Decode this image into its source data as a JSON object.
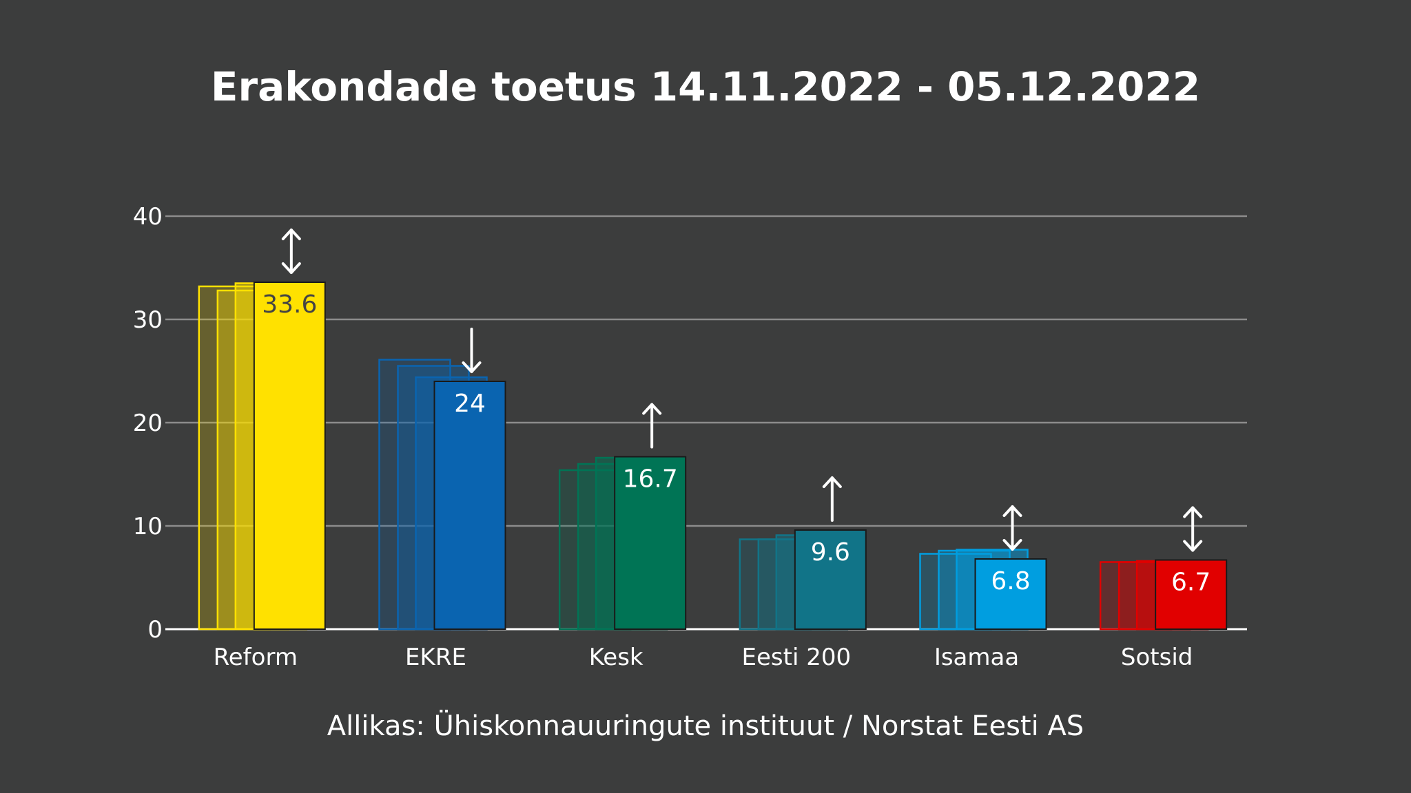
{
  "chart_data": {
    "type": "bar",
    "title": "Erakondade toetus 14.11.2022 - 05.12.2022",
    "source": "Allikas: Ühiskonnauuringute instituut / Norstat Eesti AS",
    "ylim": [
      0,
      40
    ],
    "yticks": [
      0,
      10,
      20,
      30,
      40
    ],
    "grid": true,
    "categories": [
      "Reform",
      "EKRE",
      "Kesk",
      "Eesti 200",
      "Isamaa",
      "Sotsid"
    ],
    "colors": [
      "#ffe100",
      "#0a64b0",
      "#007455",
      "#117488",
      "#009ee0",
      "#e10000"
    ],
    "label_colors": [
      "#444444",
      "#ffffff",
      "#ffffff",
      "#ffffff",
      "#ffffff",
      "#ffffff"
    ],
    "previous_values": [
      [
        33.2,
        32.8,
        33.5
      ],
      [
        26.1,
        25.5,
        24.4
      ],
      [
        15.4,
        16.0,
        16.6
      ],
      [
        8.7,
        8.7,
        9.1
      ],
      [
        7.3,
        7.6,
        7.7
      ],
      [
        6.5,
        6.5,
        6.6
      ]
    ],
    "values": [
      33.6,
      24,
      16.7,
      9.6,
      6.8,
      6.7
    ],
    "value_labels": [
      "33.6",
      "24",
      "16.7",
      "9.6",
      "6.8",
      "6.7"
    ],
    "trend": [
      "both",
      "down",
      "up",
      "up",
      "both",
      "both"
    ]
  }
}
